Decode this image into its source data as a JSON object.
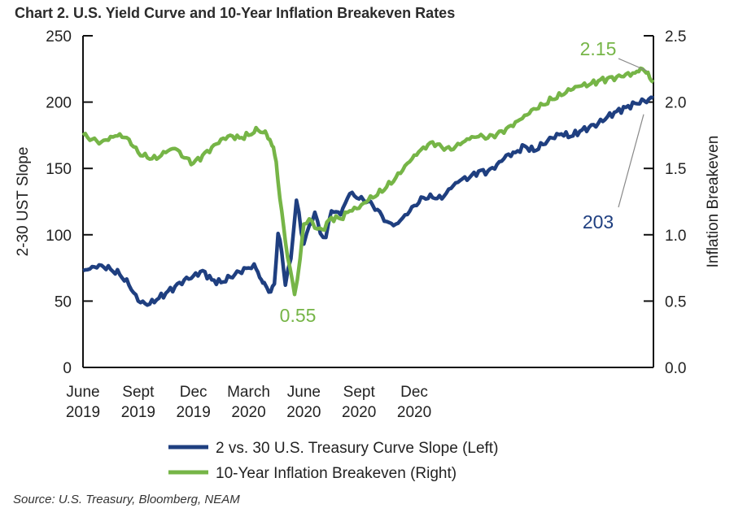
{
  "chart_data": {
    "type": "line",
    "title": "Chart 2. U.S. Yield Curve and 10-Year Inflation Breakeven Rates",
    "xlabel": "",
    "ylabel_left": "2-30 UST Slope",
    "ylabel_right": "Inflation Breakeven",
    "ylim_left": [
      0,
      250
    ],
    "ylim_right": [
      0.0,
      2.5
    ],
    "yticks_left": [
      "0",
      "50",
      "100",
      "150",
      "200",
      "250"
    ],
    "yticks_right": [
      "0.0",
      "0.5",
      "1.0",
      "1.5",
      "2.0",
      "2.5"
    ],
    "x_tick_labels": [
      {
        "month": "June",
        "year": "2019"
      },
      {
        "month": "Sept",
        "year": "2019"
      },
      {
        "month": "Dec",
        "year": "2019"
      },
      {
        "month": "March",
        "year": "2020"
      },
      {
        "month": "June",
        "year": "2020"
      },
      {
        "month": "Sept",
        "year": "2020"
      },
      {
        "month": "Dec",
        "year": "2020"
      }
    ],
    "series": [
      {
        "name": "2 vs. 30 U.S. Treasury Curve Slope (Left)",
        "axis": "left",
        "color": "#1f3f80",
        "x_months": [
          0,
          0.5,
          1,
          1.5,
          2,
          2.5,
          3,
          3.5,
          4,
          4.5,
          5,
          5.5,
          6,
          6.5,
          7,
          7.5,
          8,
          8.5,
          9,
          9.3,
          9.5,
          9.7,
          9.85,
          10,
          10.2,
          10.4,
          10.6,
          10.8,
          11,
          11.3,
          11.6,
          12,
          12.3,
          12.6,
          12.9,
          13.2,
          13.5,
          14,
          14.5,
          15,
          15.5,
          16,
          16.5,
          17,
          17.5,
          18,
          18.5,
          19,
          19.5,
          20,
          20.5,
          21,
          21.5,
          22,
          22.5,
          23,
          23.5,
          24,
          24.5,
          25,
          25.5,
          26,
          26.5,
          27,
          27.5,
          28,
          28.5,
          29,
          29.5,
          30,
          30.5,
          31
        ],
        "values": [
          73,
          76,
          77,
          74,
          70,
          62,
          50,
          47,
          51,
          56,
          61,
          66,
          69,
          73,
          66,
          64,
          68,
          72,
          75,
          78,
          72,
          66,
          64,
          60,
          57,
          63,
          101,
          87,
          62,
          82,
          126,
          93,
          107,
          117,
          101,
          98,
          118,
          115,
          131,
          127,
          125,
          119,
          110,
          108,
          115,
          122,
          128,
          128,
          127,
          135,
          141,
          143,
          148,
          148,
          153,
          160,
          162,
          167,
          163,
          168,
          173,
          176,
          174,
          178,
          181,
          184,
          189,
          193,
          196,
          199,
          201,
          203
        ]
      },
      {
        "name": "10-Year Inflation Breakeven (Right)",
        "axis": "right",
        "color": "#76b547",
        "x_months": [
          0,
          0.5,
          1,
          1.5,
          2,
          2.5,
          3,
          3.5,
          4,
          4.5,
          5,
          5.5,
          6,
          6.5,
          7,
          7.5,
          8,
          8.5,
          9,
          9.3,
          9.5,
          9.8,
          10,
          10.1,
          10.2,
          10.35,
          10.5,
          10.6,
          10.8,
          11,
          11.25,
          11.5,
          11.8,
          12,
          12.3,
          12.6,
          13,
          13.5,
          14,
          14.5,
          15,
          15.5,
          16,
          16.5,
          17,
          17.5,
          18,
          18.5,
          19,
          19.5,
          20,
          20.5,
          21,
          21.5,
          22,
          22.5,
          23,
          23.5,
          24,
          24.5,
          25,
          25.5,
          26,
          26.5,
          27,
          27.5,
          28,
          28.5,
          29,
          29.5,
          30,
          30.2,
          30.4,
          30.6,
          30.8,
          31
        ],
        "values": [
          1.75,
          1.72,
          1.7,
          1.74,
          1.76,
          1.72,
          1.62,
          1.58,
          1.57,
          1.62,
          1.65,
          1.58,
          1.54,
          1.6,
          1.66,
          1.72,
          1.75,
          1.73,
          1.75,
          1.77,
          1.79,
          1.77,
          1.75,
          1.72,
          1.7,
          1.66,
          1.55,
          1.4,
          1.18,
          0.95,
          0.75,
          0.55,
          0.82,
          1.08,
          1.12,
          1.05,
          1.04,
          1.13,
          1.12,
          1.18,
          1.2,
          1.26,
          1.3,
          1.36,
          1.43,
          1.52,
          1.6,
          1.66,
          1.7,
          1.66,
          1.64,
          1.68,
          1.72,
          1.74,
          1.73,
          1.76,
          1.8,
          1.85,
          1.9,
          1.95,
          1.98,
          2.02,
          2.05,
          2.09,
          2.12,
          2.13,
          2.16,
          2.18,
          2.19,
          2.21,
          2.22,
          2.23,
          2.25,
          2.22,
          2.18,
          2.15
        ]
      }
    ],
    "annotations": [
      {
        "text": "2.15",
        "series": "10-Year Inflation Breakeven (Right)",
        "at_month": 31,
        "value": 2.15
      },
      {
        "text": "203",
        "series": "2 vs. 30 U.S. Treasury Curve Slope (Left)",
        "at_month": 31,
        "value": 203
      },
      {
        "text": "0.55",
        "series": "10-Year Inflation Breakeven (Right)",
        "at_month": 11.5,
        "value": 0.55
      }
    ],
    "source": "Source: U.S. Treasury, Bloomberg, NEAM"
  }
}
